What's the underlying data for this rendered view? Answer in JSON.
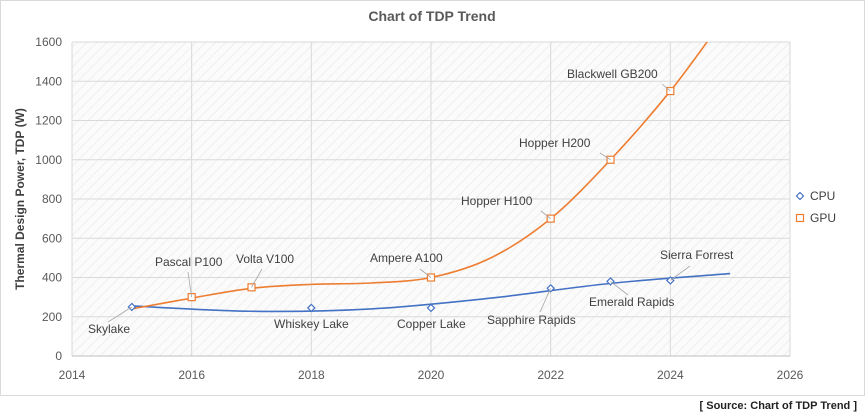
{
  "chart_data": {
    "type": "scatter",
    "title": "Chart of TDP Trend",
    "xlabel": "",
    "ylabel": "Thermal Design Power, TDP (W)",
    "xlim": [
      2014,
      2026
    ],
    "ylim": [
      0,
      1600
    ],
    "x_ticks": [
      "2014",
      "2016",
      "2018",
      "2020",
      "2022",
      "2024",
      "2026"
    ],
    "y_ticks": [
      "0",
      "200",
      "400",
      "600",
      "800",
      "1000",
      "1200",
      "1400",
      "1600"
    ],
    "grid": true,
    "legend_position": "right",
    "series": [
      {
        "name": "CPU",
        "color": "#4472c4",
        "marker": "diamond",
        "points": [
          {
            "label": "Skylake",
            "x": 2015,
            "y": 250
          },
          {
            "label": "Whiskey Lake",
            "x": 2018,
            "y": 245
          },
          {
            "label": "Copper Lake",
            "x": 2020,
            "y": 245
          },
          {
            "label": "Sapphire Rapids",
            "x": 2022,
            "y": 345
          },
          {
            "label": "Emerald Rapids",
            "x": 2023,
            "y": 380
          },
          {
            "label": "Sierra Forrest",
            "x": 2024,
            "y": 385
          }
        ],
        "trendline_end": {
          "x": 2025,
          "y": 420
        }
      },
      {
        "name": "GPU",
        "color": "#ed7d31",
        "marker": "square",
        "points": [
          {
            "label": "Pascal P100",
            "x": 2016,
            "y": 300
          },
          {
            "label": "Volta V100",
            "x": 2017,
            "y": 350
          },
          {
            "label": "Ampere A100",
            "x": 2020,
            "y": 400
          },
          {
            "label": "Hopper H100",
            "x": 2022,
            "y": 700
          },
          {
            "label": "Hopper H200",
            "x": 2023,
            "y": 1000
          },
          {
            "label": "Blackwell GB200",
            "x": 2024,
            "y": 1350
          }
        ]
      }
    ]
  },
  "source_note": "[ Source: Chart of TDP Trend ]"
}
